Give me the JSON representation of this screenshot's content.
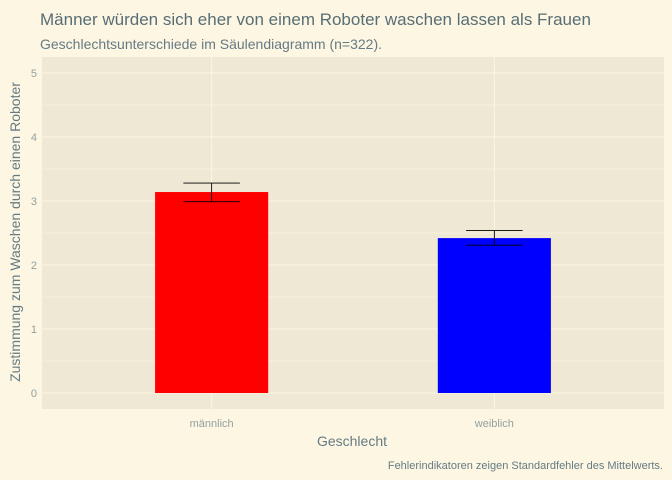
{
  "chart_data": {
    "type": "bar",
    "title": "Männer würden sich eher von einem Roboter waschen lassen als Frauen",
    "subtitle": "Geschlechtsunterschiede im Säulendiagramm (n=322).",
    "xlabel": "Geschlecht",
    "ylabel": "Zustimmung zum Waschen durch einen Roboter",
    "caption": "Fehlerindikatoren zeigen Standardfehler des Mittelwerts.",
    "categories": [
      "männlich",
      "weiblich"
    ],
    "values": [
      3.14,
      2.42
    ],
    "error_low": [
      2.99,
      2.31
    ],
    "error_high": [
      3.28,
      2.54
    ],
    "colors": [
      "#ff0000",
      "#0000ff"
    ],
    "ylim": [
      -0.25,
      5.25
    ],
    "yticks": [
      0,
      1,
      2,
      3,
      4,
      5
    ],
    "grid": true,
    "legend": "none",
    "panel_background": "#eee8d5",
    "gridline_color": "#fdf6e3"
  }
}
